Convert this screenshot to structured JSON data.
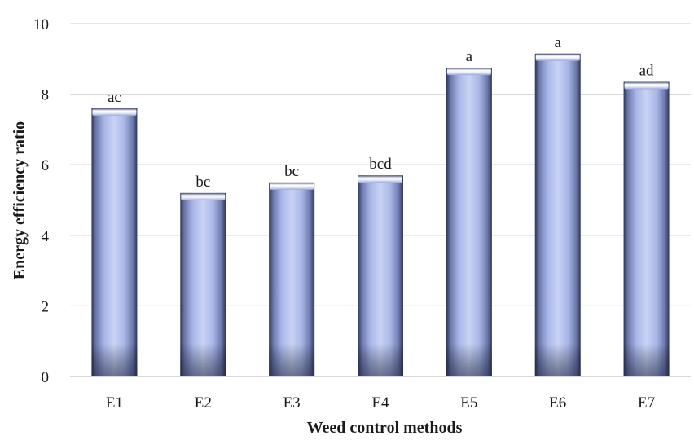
{
  "chart_data": {
    "type": "bar",
    "categories": [
      "E1",
      "E2",
      "E3",
      "E4",
      "E5",
      "E6",
      "E7"
    ],
    "values": [
      7.6,
      5.2,
      5.5,
      5.7,
      8.75,
      9.15,
      8.35
    ],
    "bar_labels": [
      "ac",
      "bc",
      "bc",
      "bcd",
      "a",
      "a",
      "ad"
    ],
    "title": "",
    "xlabel": "Weed control methods",
    "ylabel": "Energy efficiency ratio",
    "ylim": [
      0,
      10
    ],
    "yticks": [
      0,
      2,
      4,
      6,
      8,
      10
    ],
    "grid": true,
    "legend": "none",
    "colors": {
      "bar_light": "#c9d3f3",
      "bar_mid": "#a9b7e8",
      "bar_dark": "#2e3658",
      "cap_highlight": "#ffffff",
      "grid": "#d9d9d9"
    }
  }
}
